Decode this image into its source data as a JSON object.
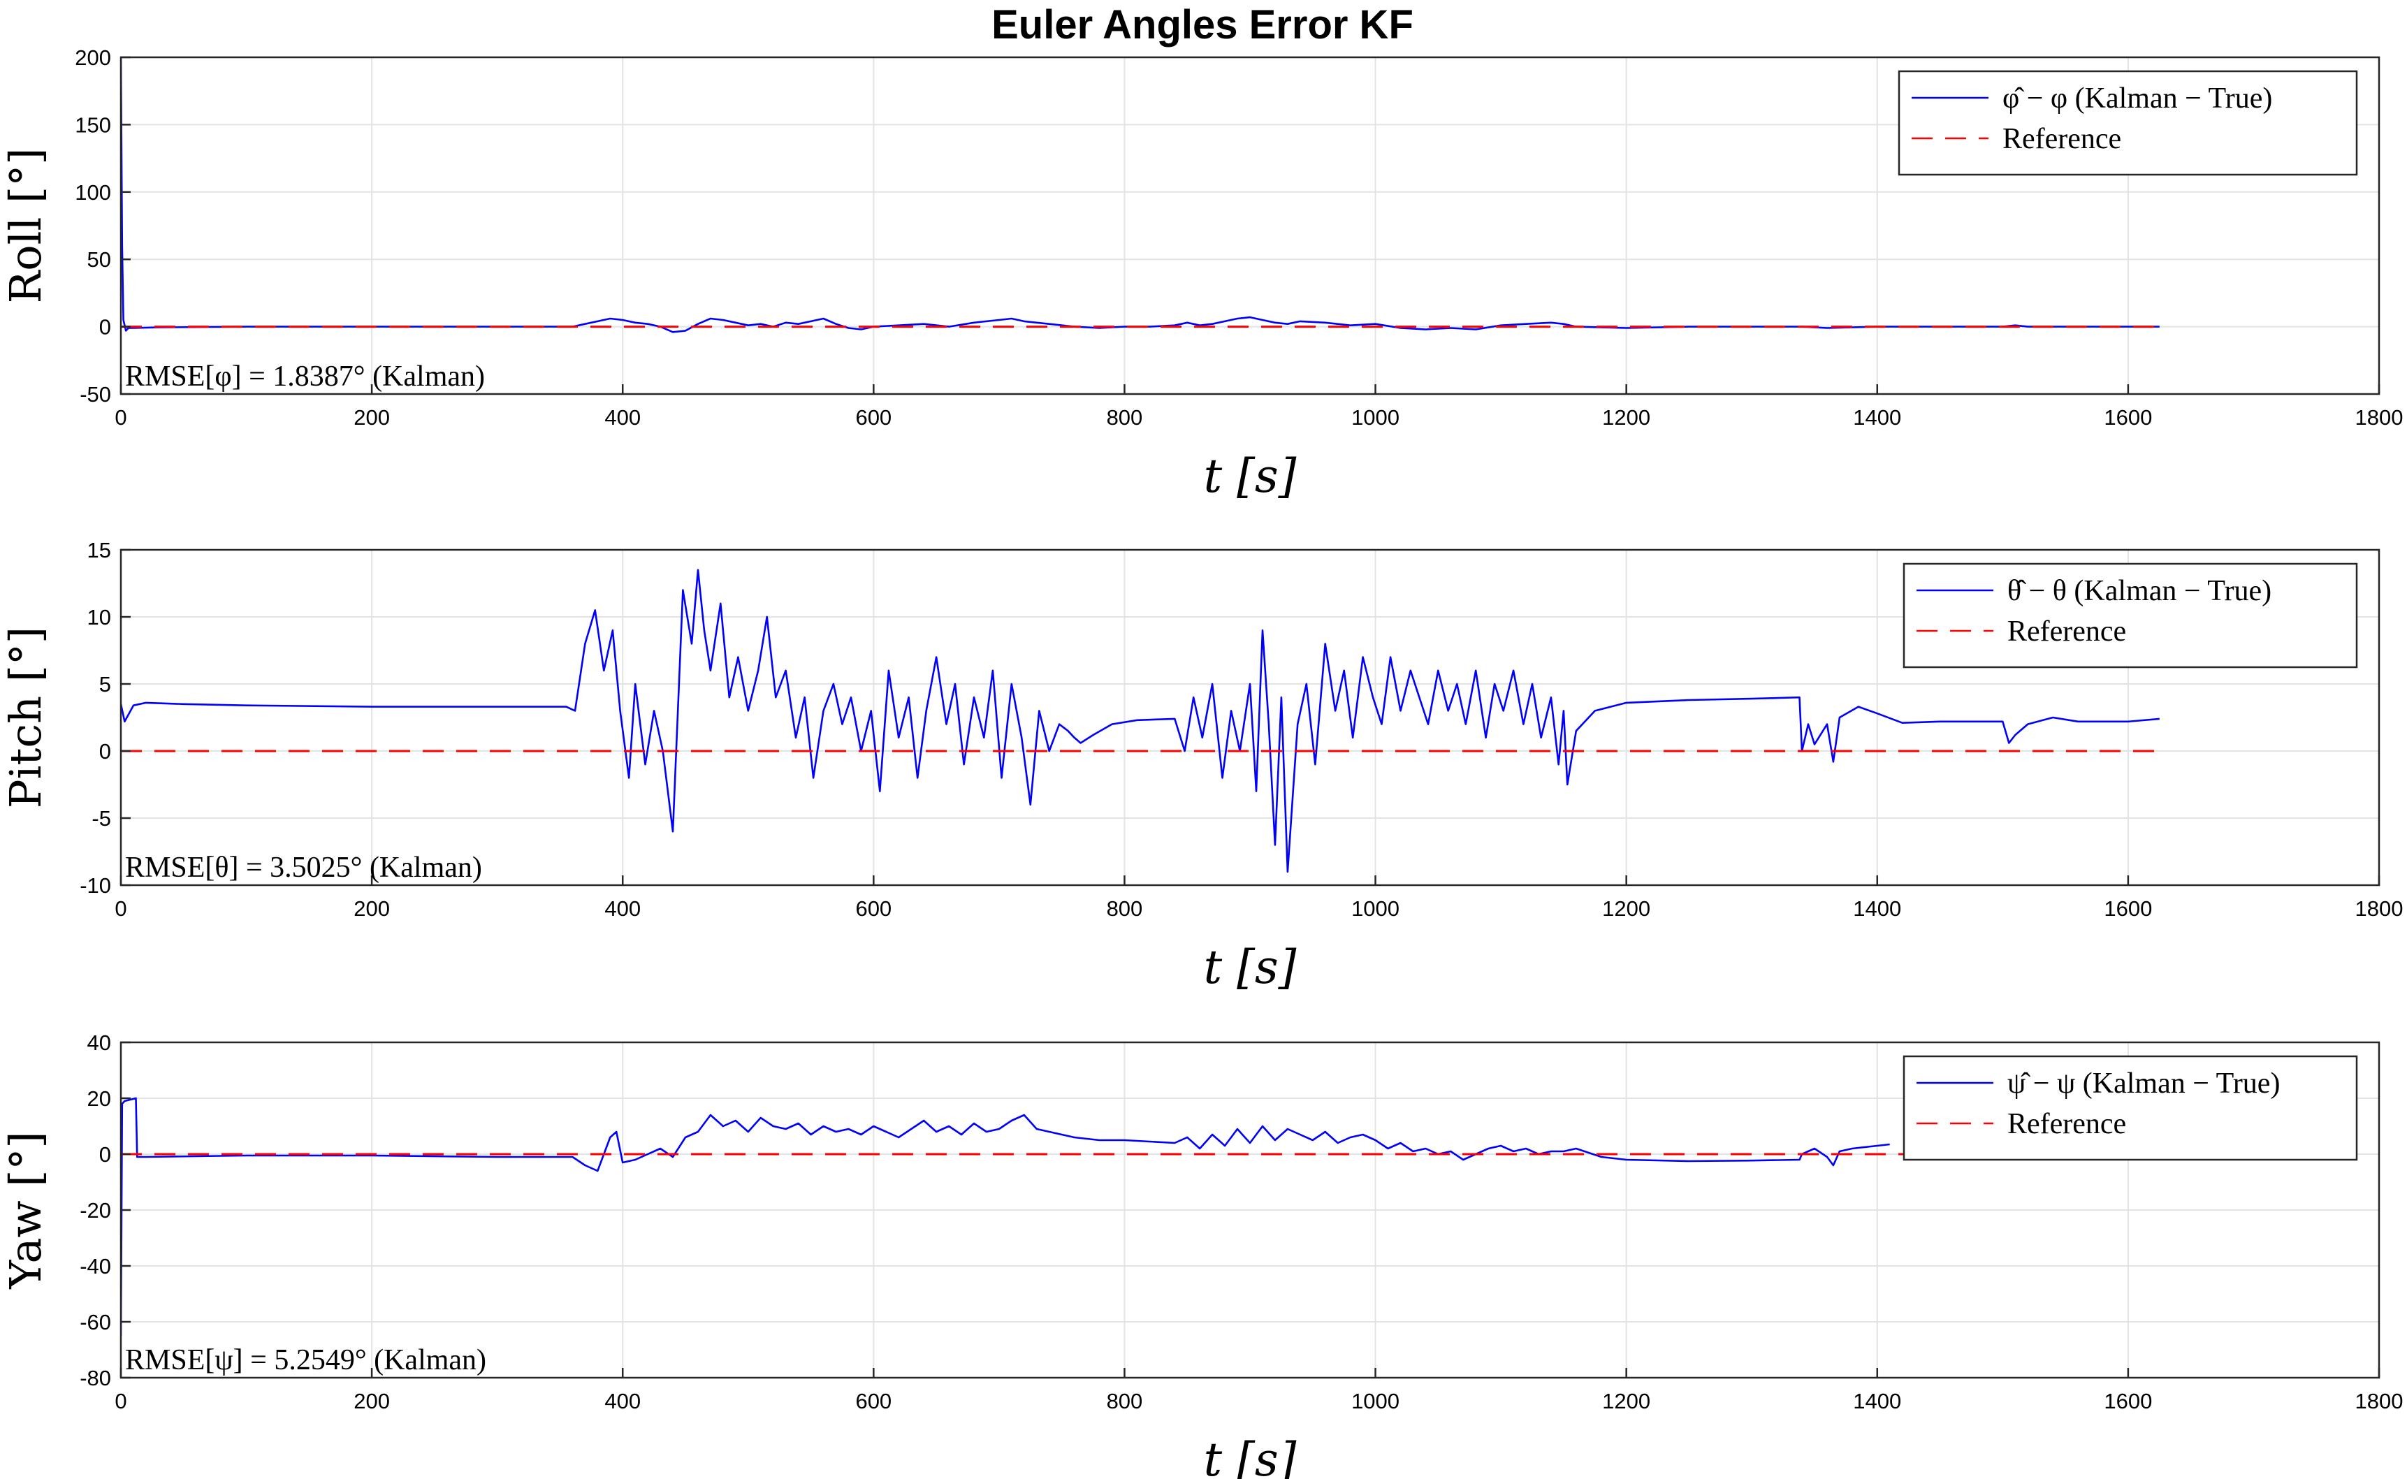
{
  "title": "Euler Angles Error KF",
  "chart_data": [
    {
      "type": "line",
      "ylabel": "Roll [°]",
      "xlabel": "t [s]",
      "xlim": [
        0,
        1800
      ],
      "ylim": [
        -50,
        200
      ],
      "xticks": [
        0,
        200,
        400,
        600,
        800,
        1000,
        1200,
        1400,
        1600,
        1800
      ],
      "yticks": [
        -50,
        0,
        50,
        100,
        150,
        200
      ],
      "grid": true,
      "legend_position": "top-right",
      "annotation": "RMSE[φ] = 1.8387° (Kalman)",
      "series": [
        {
          "name": "φ̂ − φ (Kalman − True)",
          "color": "#0000ff",
          "style": "solid",
          "x": [
            0,
            1,
            2,
            4,
            6,
            10,
            30,
            100,
            200,
            300,
            360,
            370,
            380,
            390,
            400,
            410,
            420,
            430,
            440,
            450,
            460,
            470,
            480,
            490,
            500,
            510,
            520,
            530,
            540,
            550,
            560,
            570,
            580,
            590,
            600,
            620,
            640,
            660,
            680,
            700,
            710,
            720,
            740,
            760,
            780,
            800,
            820,
            840,
            850,
            860,
            870,
            880,
            890,
            900,
            910,
            920,
            930,
            940,
            960,
            980,
            1000,
            1020,
            1040,
            1060,
            1080,
            1100,
            1120,
            1140,
            1150,
            1160,
            1200,
            1250,
            1300,
            1340,
            1360,
            1400,
            1450,
            1500,
            1510,
            1520,
            1600,
            1625
          ],
          "y": [
            200,
            60,
            5,
            -3,
            -1,
            -1,
            -0.5,
            0,
            0,
            0,
            0,
            2,
            4,
            6,
            5,
            3,
            2,
            0,
            -4,
            -3,
            2,
            6,
            5,
            3,
            1,
            2,
            0,
            3,
            2,
            4,
            6,
            2,
            -1,
            -2,
            0,
            1,
            2,
            0,
            3,
            5,
            6,
            4,
            2,
            0,
            -1,
            0,
            0,
            1,
            3,
            1,
            2,
            4,
            6,
            7,
            5,
            3,
            2,
            4,
            3,
            1,
            2,
            -1,
            -2,
            -1,
            -2,
            1,
            2,
            3,
            2,
            0,
            -1,
            0,
            0,
            0,
            -1,
            0,
            0,
            0,
            1,
            0,
            0,
            0
          ]
        },
        {
          "name": "Reference",
          "color": "#ff0000",
          "style": "dashed",
          "x": [
            0,
            1625
          ],
          "y": [
            0,
            0
          ]
        }
      ]
    },
    {
      "type": "line",
      "ylabel": "Pitch [°]",
      "xlabel": "t [s]",
      "xlim": [
        0,
        1800
      ],
      "ylim": [
        -10,
        15
      ],
      "xticks": [
        0,
        200,
        400,
        600,
        800,
        1000,
        1200,
        1400,
        1600,
        1800
      ],
      "yticks": [
        -10,
        -5,
        0,
        5,
        10,
        15
      ],
      "grid": true,
      "legend_position": "top-right",
      "annotation": "RMSE[θ] = 3.5025° (Kalman)",
      "series": [
        {
          "name": "θ̂ − θ (Kalman − True)",
          "color": "#0000ff",
          "style": "solid",
          "x": [
            0,
            3,
            10,
            20,
            50,
            100,
            200,
            300,
            355,
            362,
            370,
            378,
            385,
            392,
            398,
            405,
            410,
            418,
            425,
            432,
            440,
            448,
            455,
            460,
            465,
            470,
            478,
            485,
            492,
            500,
            508,
            515,
            522,
            530,
            538,
            545,
            552,
            560,
            568,
            575,
            582,
            590,
            598,
            605,
            612,
            620,
            628,
            635,
            642,
            650,
            658,
            665,
            672,
            680,
            688,
            695,
            702,
            710,
            718,
            725,
            732,
            740,
            748,
            755,
            760,
            765,
            775,
            790,
            810,
            840,
            848,
            855,
            862,
            870,
            878,
            885,
            892,
            900,
            905,
            910,
            915,
            920,
            925,
            930,
            938,
            945,
            952,
            960,
            968,
            975,
            982,
            990,
            998,
            1005,
            1012,
            1020,
            1028,
            1035,
            1042,
            1050,
            1058,
            1065,
            1072,
            1080,
            1088,
            1095,
            1102,
            1110,
            1118,
            1125,
            1132,
            1140,
            1146,
            1150,
            1153,
            1160,
            1175,
            1200,
            1250,
            1300,
            1338,
            1340,
            1345,
            1350,
            1360,
            1365,
            1370,
            1385,
            1400,
            1420,
            1450,
            1480,
            1500,
            1505,
            1510,
            1520,
            1540,
            1560,
            1600,
            1625
          ],
          "y": [
            3.5,
            2.2,
            3.4,
            3.6,
            3.5,
            3.4,
            3.3,
            3.3,
            3.3,
            3.0,
            8,
            10.5,
            6,
            9,
            3,
            -2,
            5,
            -1,
            3,
            0,
            -6,
            12,
            8,
            13.5,
            9,
            6,
            11,
            4,
            7,
            3,
            6,
            10,
            4,
            6,
            1,
            4,
            -2,
            3,
            5,
            2,
            4,
            0,
            3,
            -3,
            6,
            1,
            4,
            -2,
            3,
            7,
            2,
            5,
            -1,
            4,
            1,
            6,
            -2,
            5,
            1,
            -4,
            3,
            0,
            2,
            1.5,
            1.0,
            0.6,
            1.2,
            2.0,
            2.3,
            2.4,
            0,
            4,
            1,
            5,
            -2,
            3,
            0,
            5,
            -3,
            9,
            2,
            -7,
            4,
            -9,
            2,
            5,
            -1,
            8,
            3,
            6,
            1,
            7,
            4,
            2,
            7,
            3,
            6,
            4,
            2,
            6,
            3,
            5,
            2,
            6,
            1,
            5,
            3,
            6,
            2,
            5,
            1,
            4,
            -1,
            3,
            -2.5,
            1.5,
            3.0,
            3.6,
            3.8,
            3.9,
            4.0,
            0,
            2,
            0.5,
            2.0,
            -0.8,
            2.5,
            3.3,
            2.8,
            2.1,
            2.2,
            2.2,
            2.2,
            0.6,
            1.2,
            2.0,
            2.5,
            2.2,
            2.2,
            2.4
          ]
        },
        {
          "name": "Reference",
          "color": "#ff0000",
          "style": "dashed",
          "x": [
            0,
            1625
          ],
          "y": [
            0,
            0
          ]
        }
      ]
    },
    {
      "type": "line",
      "ylabel": "Yaw [°]",
      "xlabel": "t [s]",
      "xlim": [
        0,
        1800
      ],
      "ylim": [
        -80,
        40
      ],
      "xticks": [
        0,
        200,
        400,
        600,
        800,
        1000,
        1200,
        1400,
        1600,
        1800
      ],
      "yticks": [
        -80,
        -60,
        -40,
        -20,
        0,
        20,
        40
      ],
      "grid": true,
      "legend_position": "top-right",
      "annotation": "RMSE[ψ] = 5.2549° (Kalman)",
      "series": [
        {
          "name": "ψ̂ − ψ (Kalman − True)",
          "color": "#0000ff",
          "style": "solid",
          "x": [
            0,
            1,
            3,
            12,
            13,
            20,
            100,
            200,
            300,
            360,
            370,
            380,
            390,
            395,
            400,
            410,
            420,
            430,
            440,
            450,
            460,
            470,
            480,
            490,
            500,
            510,
            520,
            530,
            540,
            550,
            560,
            570,
            580,
            590,
            600,
            610,
            620,
            630,
            640,
            650,
            660,
            670,
            680,
            690,
            700,
            710,
            720,
            730,
            740,
            760,
            780,
            800,
            840,
            850,
            860,
            870,
            880,
            890,
            900,
            910,
            920,
            930,
            940,
            950,
            960,
            970,
            980,
            990,
            1000,
            1010,
            1020,
            1030,
            1040,
            1050,
            1060,
            1070,
            1080,
            1090,
            1100,
            1110,
            1120,
            1130,
            1140,
            1150,
            1160,
            1180,
            1200,
            1250,
            1300,
            1338,
            1340,
            1350,
            1360,
            1365,
            1370,
            1380,
            1400,
            1410
          ],
          "y": [
            -65,
            18,
            19,
            20,
            -1,
            -1,
            -0.5,
            -0.5,
            -1,
            -1,
            -4,
            -6,
            6,
            8,
            -3,
            -2,
            0,
            2,
            -1,
            6,
            8,
            14,
            10,
            12,
            8,
            13,
            10,
            9,
            11,
            7,
            10,
            8,
            9,
            7,
            10,
            8,
            6,
            9,
            12,
            8,
            10,
            7,
            11,
            8,
            9,
            12,
            14,
            9,
            8,
            6,
            5,
            5,
            4,
            6,
            2,
            7,
            3,
            9,
            4,
            10,
            5,
            9,
            7,
            5,
            8,
            4,
            6,
            7,
            5,
            2,
            4,
            1,
            2,
            0,
            1,
            -2,
            0,
            2,
            3,
            1,
            2,
            0,
            1,
            1,
            2,
            -1,
            -2,
            -2.5,
            -2.3,
            -2.0,
            0,
            2,
            -1,
            -4,
            1,
            2,
            3,
            3.5
          ]
        },
        {
          "name": "Reference",
          "color": "#ff0000",
          "style": "dashed",
          "x": [
            0,
            1625
          ],
          "y": [
            0,
            0
          ]
        }
      ]
    }
  ]
}
